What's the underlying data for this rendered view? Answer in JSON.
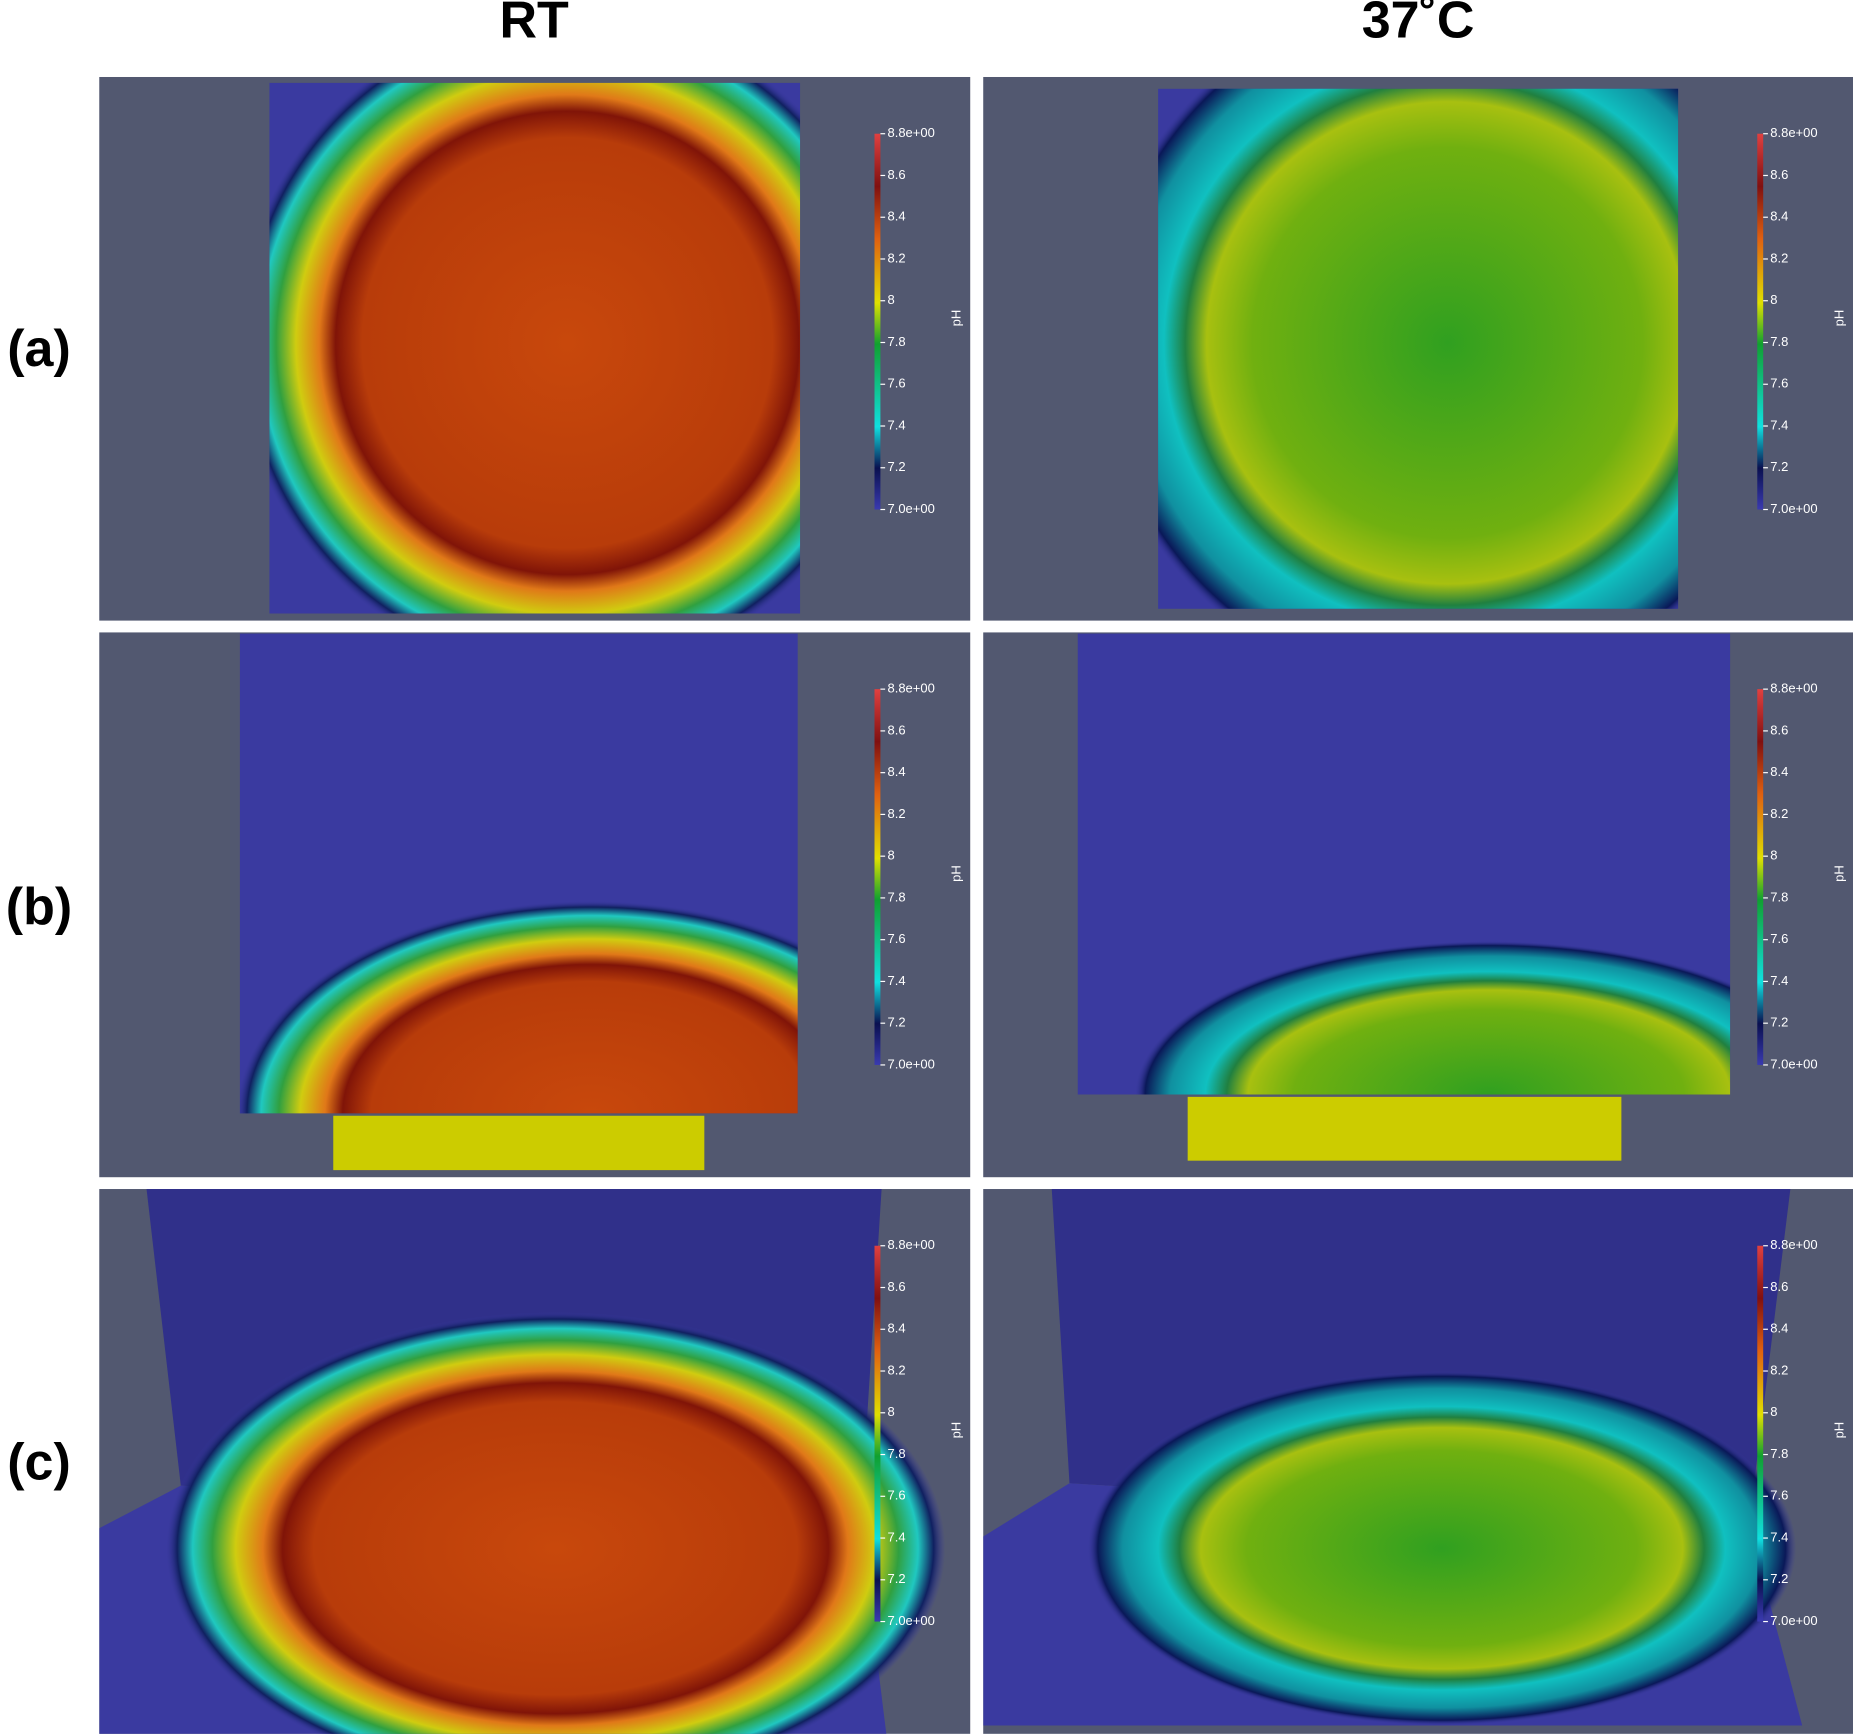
{
  "columns": [
    "RT",
    "37˚C"
  ],
  "rows": [
    "(a)",
    "(b)",
    "(c)"
  ],
  "colorbar": {
    "title": "pH",
    "range": [
      7.0,
      8.8
    ],
    "ticks": [
      {
        "value": 8.8,
        "label": "8.8e+00"
      },
      8.6,
      8.4,
      8.2,
      8,
      7.8,
      7.6,
      7.4,
      7.2,
      {
        "value": 7.0,
        "label": "7.0e+00"
      }
    ]
  }
}
